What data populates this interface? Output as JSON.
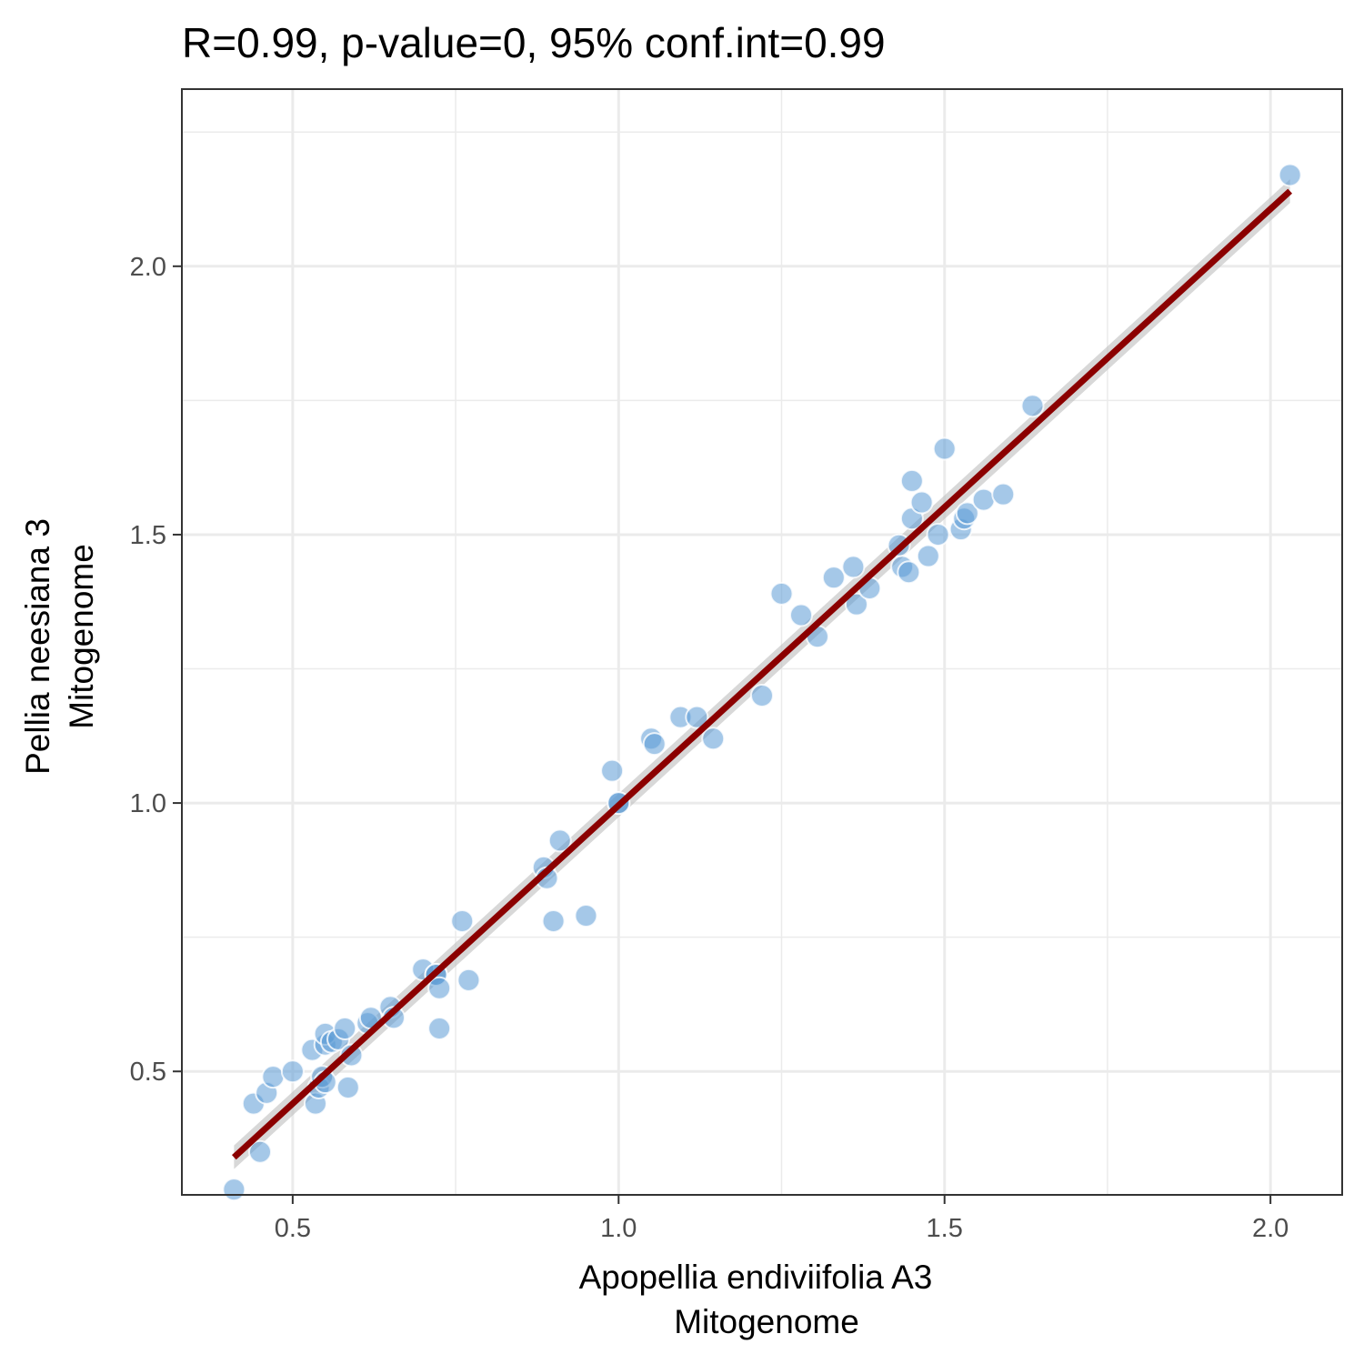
{
  "chart_data": {
    "type": "scatter",
    "title": "R=0.99, p-value=0, 95% conf.int=0.99",
    "xlabel": [
      "Apopellia endiviifolia A3",
      "Mitogenome"
    ],
    "ylabel": [
      "Pellia neesiana 3",
      "Mitogenome"
    ],
    "xlim": [
      0.33,
      2.11
    ],
    "ylim": [
      0.27,
      2.33
    ],
    "x_ticks": [
      0.5,
      1.0,
      1.5,
      2.0
    ],
    "y_ticks": [
      0.5,
      1.0,
      1.5,
      2.0
    ],
    "x_tick_labels": [
      "0.5",
      "1.0",
      "1.5",
      "2.0"
    ],
    "y_tick_labels": [
      "0.5",
      "1.0",
      "1.5",
      "2.0"
    ],
    "grid": true,
    "legend": "none",
    "colors": {
      "points": "#5b9bd5",
      "fit_line": "#8b0000",
      "conf_band": "#bebebe",
      "grid": "#ebebeb",
      "panel_border": "#333333"
    },
    "fit_line": {
      "x": [
        0.41,
        2.03
      ],
      "y": [
        0.34,
        2.14
      ]
    },
    "series": [
      {
        "x": [
          0.41,
          0.44,
          0.45,
          0.46,
          0.47,
          0.5,
          0.53,
          0.535,
          0.54,
          0.545,
          0.55,
          0.55,
          0.55,
          0.56,
          0.57,
          0.58,
          0.585,
          0.59,
          0.615,
          0.62,
          0.65,
          0.655,
          0.7,
          0.72,
          0.72,
          0.725,
          0.725,
          0.76,
          0.77,
          0.885,
          0.89,
          0.9,
          0.91,
          0.95,
          0.99,
          1.0,
          1.0,
          1.05,
          1.055,
          1.095,
          1.12,
          1.145,
          1.22,
          1.25,
          1.28,
          1.305,
          1.33,
          1.36,
          1.365,
          1.385,
          1.43,
          1.435,
          1.445,
          1.45,
          1.45,
          1.465,
          1.475,
          1.49,
          1.5,
          1.525,
          1.53,
          1.535,
          1.56,
          1.59,
          1.635,
          2.03
        ],
        "y": [
          0.28,
          0.44,
          0.35,
          0.46,
          0.49,
          0.5,
          0.54,
          0.44,
          0.47,
          0.49,
          0.55,
          0.57,
          0.48,
          0.555,
          0.56,
          0.58,
          0.47,
          0.53,
          0.59,
          0.6,
          0.62,
          0.6,
          0.69,
          0.68,
          0.68,
          0.58,
          0.655,
          0.78,
          0.67,
          0.88,
          0.86,
          0.78,
          0.93,
          0.79,
          1.06,
          1.0,
          1.0,
          1.12,
          1.11,
          1.16,
          1.16,
          1.12,
          1.2,
          1.39,
          1.35,
          1.31,
          1.42,
          1.44,
          1.37,
          1.4,
          1.48,
          1.44,
          1.43,
          1.6,
          1.53,
          1.56,
          1.46,
          1.5,
          1.66,
          1.51,
          1.53,
          1.54,
          1.565,
          1.575,
          1.74,
          2.17
        ]
      }
    ]
  }
}
